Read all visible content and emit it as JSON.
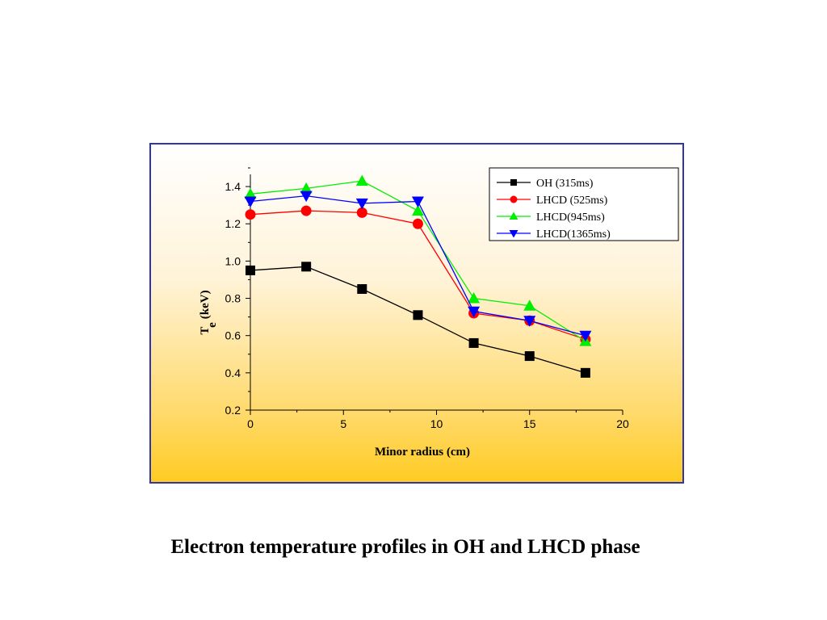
{
  "caption": "Electron temperature profiles in OH and LHCD phase",
  "chart_data": {
    "type": "line",
    "xlabel": "Minor radius (cm)",
    "ylabel": "T",
    "ylabel_subscript": "e",
    "ylabel_unit": "(keV)",
    "xlim": [
      0,
      20
    ],
    "ylim": [
      0.2,
      1.5
    ],
    "xticks": [
      "0",
      "5",
      "10",
      "15",
      "20"
    ],
    "xtick_values": [
      0,
      5,
      10,
      15,
      20
    ],
    "yticks": [
      "0.2",
      "0.4",
      "0.6",
      "0.8",
      "1.0",
      "1.2",
      "1.4"
    ],
    "ytick_values": [
      0.2,
      0.4,
      0.6,
      0.8,
      1.0,
      1.2,
      1.4
    ],
    "grid": false,
    "legend_position": "top-right",
    "series": [
      {
        "name": "OH (315ms)",
        "color": "#000000",
        "marker": "square",
        "x": [
          0,
          3,
          6,
          9,
          12,
          15,
          18
        ],
        "y": [
          0.95,
          0.97,
          0.85,
          0.71,
          0.56,
          0.49,
          0.4
        ]
      },
      {
        "name": "LHCD (525ms)",
        "color": "#ff0000",
        "marker": "circle",
        "x": [
          0,
          3,
          6,
          9,
          12,
          15,
          18
        ],
        "y": [
          1.25,
          1.27,
          1.26,
          1.2,
          0.72,
          0.68,
          0.58
        ]
      },
      {
        "name": "LHCD(945ms)",
        "color": "#00ee00",
        "marker": "triangle-up",
        "x": [
          0,
          3,
          6,
          9,
          12,
          15,
          18
        ],
        "y": [
          1.36,
          1.39,
          1.43,
          1.27,
          0.8,
          0.76,
          0.57
        ]
      },
      {
        "name": "LHCD(1365ms)",
        "color": "#0000ff",
        "marker": "triangle-down",
        "x": [
          0,
          3,
          6,
          9,
          12,
          15,
          18
        ],
        "y": [
          1.32,
          1.35,
          1.31,
          1.32,
          0.73,
          0.68,
          0.6
        ]
      }
    ]
  }
}
